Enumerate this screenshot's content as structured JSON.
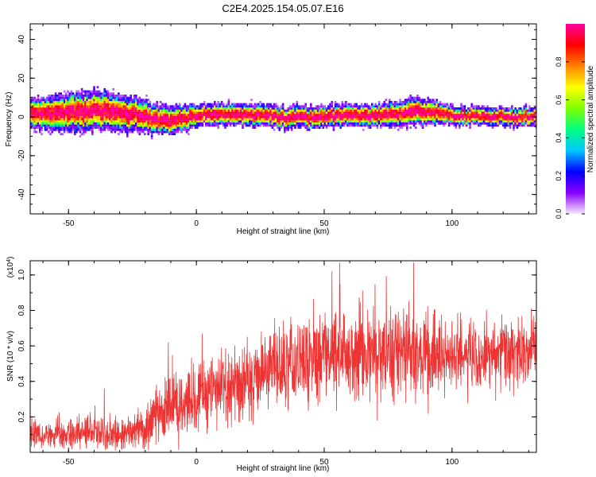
{
  "title": "C2E4.2025.154.05.07.E16",
  "chart_data": [
    {
      "type": "heatmap",
      "xlabel": "Height of straight line (km)",
      "ylabel": "Frequency (Hz)",
      "xlim": [
        -65,
        133
      ],
      "ylim": [
        -50,
        48
      ],
      "xticks": [
        -50,
        0,
        50,
        100
      ],
      "yticks": [
        -40,
        -20,
        0,
        20,
        40
      ],
      "ridge": {
        "x": [
          -65,
          -55,
          -45,
          -38,
          -30,
          -22,
          -15,
          -10,
          -5,
          0,
          10,
          20,
          30,
          35,
          40,
          45,
          50,
          60,
          70,
          80,
          85,
          90,
          95,
          100,
          110,
          120,
          125,
          133
        ],
        "center_hz": [
          1.5,
          2,
          3,
          3.5,
          2,
          0.5,
          -1.5,
          -2,
          -0.5,
          1,
          1.5,
          1,
          0.5,
          -1,
          0.5,
          -0.5,
          0.5,
          1,
          0.5,
          1.5,
          3,
          2.5,
          2,
          0.5,
          0.5,
          0.5,
          -0.5,
          0.5
        ],
        "spread_hz": [
          4,
          5,
          5.5,
          5.5,
          5,
          4.5,
          4,
          4,
          3.5,
          3,
          3,
          3,
          3,
          3,
          3,
          3,
          3,
          3,
          3,
          3.5,
          4,
          3.5,
          3,
          2.5,
          2.5,
          2.5,
          2.5,
          2.5
        ]
      },
      "colorbar": {
        "label": "Normalized spectral amplitude",
        "range": [
          0,
          1
        ],
        "ticks": [
          "0.0",
          "0.2",
          "0.4",
          "0.6",
          "0.8"
        ],
        "colors": [
          "#f7e6ff",
          "#8a00ff",
          "#0000ff",
          "#00c8ff",
          "#00ff80",
          "#80ff00",
          "#ffff00",
          "#ff8000",
          "#ff0000",
          "#ff00a0"
        ]
      }
    },
    {
      "type": "line",
      "xlabel": "Height of straight line (km)",
      "ylabel": "SNR (10 * v/v)",
      "y_multiplier": "(x10",
      "y_multiplier_exp": "4",
      "y_multiplier_close": ")",
      "xlim": [
        -65,
        133
      ],
      "ylim": [
        0,
        1.08
      ],
      "xticks": [
        -50,
        0,
        50,
        100
      ],
      "yticks": [
        0.2,
        0.4,
        0.6,
        0.8,
        1.0
      ],
      "ytick_labels": [
        "0.2",
        "0.4",
        "0.6",
        "0.8",
        "1.0"
      ],
      "series": [
        {
          "color": "#ee3333",
          "trend": {
            "x": [
              -65,
              -40,
              -30,
              -25,
              -20,
              -15,
              -10,
              0,
              10,
              20,
              30,
              40,
              50,
              60,
              70,
              80,
              90,
              100,
              110,
              120,
              133
            ],
            "mean": [
              0.1,
              0.11,
              0.1,
              0.12,
              0.15,
              0.22,
              0.25,
              0.3,
              0.36,
              0.42,
              0.47,
              0.51,
              0.53,
              0.55,
              0.55,
              0.56,
              0.54,
              0.53,
              0.55,
              0.56,
              0.58
            ],
            "amp": [
              0.05,
              0.06,
              0.06,
              0.07,
              0.09,
              0.11,
              0.12,
              0.12,
              0.12,
              0.13,
              0.14,
              0.15,
              0.17,
              0.17,
              0.16,
              0.16,
              0.15,
              0.13,
              0.12,
              0.12,
              0.12
            ]
          },
          "peaks": [
            {
              "x": -36,
              "y": 0.36
            },
            {
              "x": -11,
              "y": 0.62
            },
            {
              "x": 53,
              "y": 1.02
            },
            {
              "x": 56,
              "y": 1.07
            },
            {
              "x": 85,
              "y": 1.07
            },
            {
              "x": 131,
              "y": 0.81
            }
          ]
        }
      ]
    }
  ]
}
